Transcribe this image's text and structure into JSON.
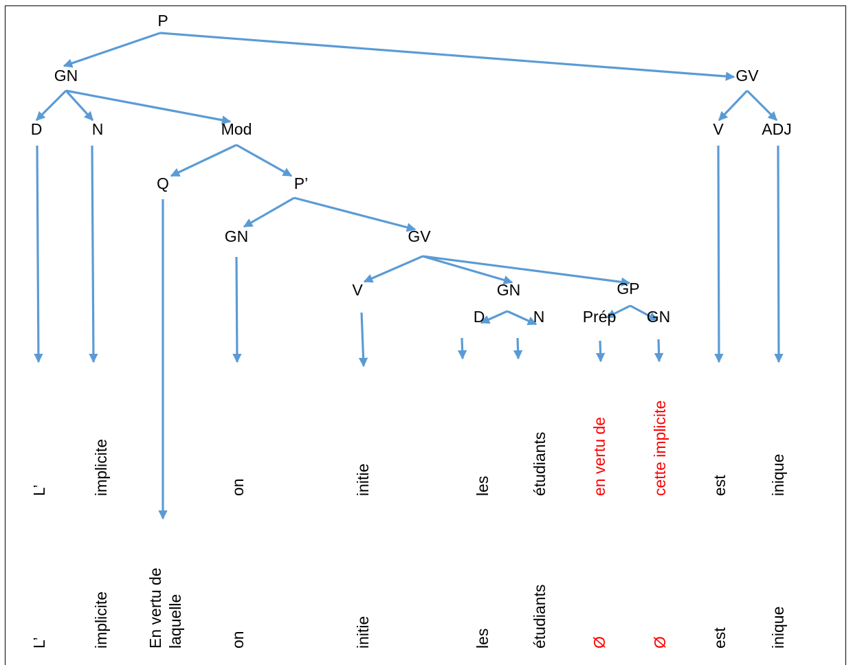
{
  "colors": {
    "arrow": "#5b9bd5",
    "text": "#000000",
    "highlight": "#ff0000"
  },
  "nodes": {
    "p": "P",
    "gn": "GN",
    "gv": "GV",
    "d": "D",
    "n": "N",
    "mod": "Mod",
    "v": "V",
    "adj": "ADJ",
    "q": "Q",
    "p_prime": "P’",
    "gn2": "GN",
    "gv2": "GV",
    "v2": "V",
    "gn3": "GN",
    "gp": "GP",
    "d2": "D",
    "n2": "N",
    "prep": "Prép",
    "gn4": "GN"
  },
  "surface_words": [
    {
      "text": "L’",
      "red": false
    },
    {
      "text": "implicite",
      "red": false
    },
    {
      "text": "on",
      "red": false
    },
    {
      "text": "initie",
      "red": false
    },
    {
      "text": "les",
      "red": false
    },
    {
      "text": "étudiants",
      "red": false
    },
    {
      "text": "en vertu de",
      "red": true
    },
    {
      "text": "cette implicite",
      "red": true
    },
    {
      "text": "est",
      "red": false
    },
    {
      "text": "inique",
      "red": false
    }
  ],
  "final_words": [
    {
      "text": "L’",
      "red": false
    },
    {
      "text": "implicite",
      "red": false
    },
    {
      "text": "En vertu de",
      "red": false
    },
    {
      "text": "laquelle",
      "red": false
    },
    {
      "text": "on",
      "red": false
    },
    {
      "text": "initie",
      "red": false
    },
    {
      "text": "les",
      "red": false
    },
    {
      "text": "étudiants",
      "red": false
    },
    {
      "text": "Ø",
      "red": true
    },
    {
      "text": "Ø",
      "red": true
    },
    {
      "text": "est",
      "red": false
    },
    {
      "text": "inique",
      "red": false
    }
  ]
}
